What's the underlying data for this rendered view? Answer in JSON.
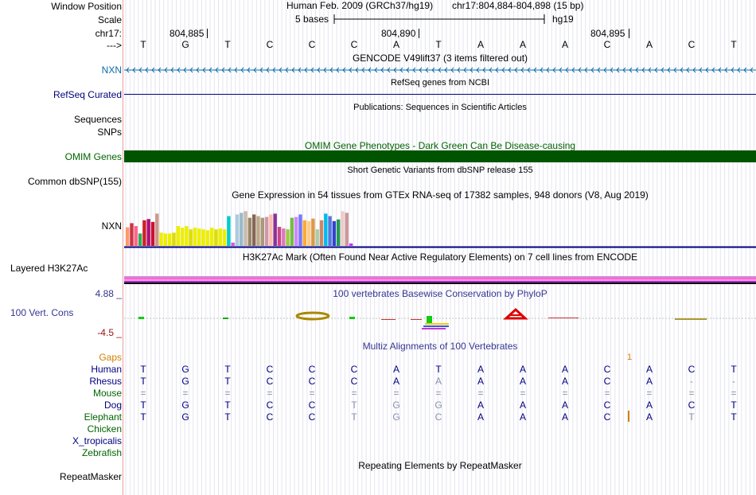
{
  "colors": {
    "navy": "#000080",
    "blue_gene": "#0c6ca8",
    "omim_green": "#005400",
    "gaps_orange": "#d08000",
    "cons_blue": "#353595",
    "h3k27_pink": "#ff66cc",
    "h3k27_purple": "#9933cc"
  },
  "header": {
    "window_position_label": "Window Position",
    "scale_label": "Scale",
    "chrom_label": "chr17:",
    "arrow_label": "--->",
    "assembly_text": "Human Feb. 2009 (GRCh37/hg19)",
    "position_text": "chr17:804,884-804,898 (15 bp)",
    "scale_text": "5 bases",
    "db_text": "hg19",
    "ticks": [
      "804,885",
      "804,890",
      "804,895"
    ]
  },
  "bases": [
    "T",
    "G",
    "T",
    "C",
    "C",
    "C",
    "A",
    "T",
    "A",
    "A",
    "A",
    "C",
    "A",
    "C",
    "T"
  ],
  "tracks": {
    "gencode_title": "GENCODE V49lift37 (3 items filtered out)",
    "nxn_label": "NXN",
    "refseq_title": "RefSeq genes from NCBI",
    "refseq_label": "RefSeq Curated",
    "publications_title": "Publications: Sequences in Scientific Articles",
    "sequences_label": "Sequences",
    "snps_label": "SNPs",
    "omim_title": "OMIM Gene Phenotypes - Dark Green Can Be Disease-causing",
    "omim_label": "OMIM Genes",
    "dbsnp_title": "Short Genetic Variants from dbSNP release 155",
    "dbsnp_label": "Common dbSNP(155)",
    "gtex_title": "Gene Expression in 54 tissues from GTEx RNA-seq of 17382 samples, 948 donors (V8, Aug 2019)",
    "gtex_label": "NXN",
    "h3k27_title": "H3K27Ac Mark (Often Found Near Active Regulatory Elements) on 7 cell lines from ENCODE",
    "h3k27_label": "Layered H3K27Ac",
    "phylop_title": "100 vertebrates Basewise Conservation by PhyloP",
    "phylop_max": "4.88 _",
    "phylop_label": "100 Vert. Cons",
    "phylop_min": "-4.5 _",
    "multiz_title": "Multiz Alignments of 100 Vertebrates",
    "gaps_label": "Gaps",
    "repeat_title": "Repeating Elements by RepeatMasker",
    "repeat_label": "RepeatMasker"
  },
  "gtex_values": [
    0.45,
    0.55,
    0.48,
    0.3,
    0.62,
    0.65,
    0.58,
    0.78,
    0.32,
    0.3,
    0.3,
    0.32,
    0.48,
    0.44,
    0.48,
    0.4,
    0.44,
    0.42,
    0.4,
    0.38,
    0.44,
    0.4,
    0.42,
    0.4,
    0.72,
    0.08,
    0.76,
    0.8,
    0.84,
    0.68,
    0.76,
    0.72,
    0.68,
    0.7,
    0.76,
    0.78,
    0.46,
    0.42,
    0.4,
    0.68,
    0.7,
    0.76,
    0.62,
    0.6,
    0.66,
    0.4,
    0.62,
    0.78,
    0.72,
    0.6,
    0.64,
    0.84,
    0.8,
    0.06
  ],
  "gtex_colors": [
    "#ff9966",
    "#cc3344",
    "#ff6688",
    "#33aa55",
    "#cc2222",
    "#aa1177",
    "#cc1133",
    "#cc9988",
    "#eeee00",
    "#eeee00",
    "#eeee00",
    "#dddd00",
    "#eeee00",
    "#eeee00",
    "#eeee00",
    "#dddd00",
    "#eeee00",
    "#eeee00",
    "#eeee00",
    "#eeee00",
    "#eeee00",
    "#dddd00",
    "#eeee00",
    "#eeee00",
    "#00cccc",
    "#dd55dd",
    "#aaccdd",
    "#99bbcc",
    "#ccbbaa",
    "#998866",
    "#886655",
    "#bbaa88",
    "#aa9977",
    "#cc99aa",
    "#ffbbaa",
    "#883399",
    "#cc4488",
    "#dd77bb",
    "#99cc44",
    "#77bb44",
    "#cc88ff",
    "#7777ff",
    "#ffaa33",
    "#ffcc88",
    "#dd9944",
    "#aaccaa",
    "#cc8866",
    "#00bbee",
    "#5577dd",
    "#3344cc",
    "#229955",
    "#eecccc",
    "#cc9999",
    "#cc33ff"
  ],
  "species": [
    {
      "name": "Human",
      "seq": [
        "T",
        "G",
        "T",
        "C",
        "C",
        "C",
        "A",
        "T",
        "A",
        "A",
        "A",
        "C",
        "A",
        "C",
        "T"
      ]
    },
    {
      "name": "Rhesus",
      "seq": [
        "T",
        "G",
        "T",
        "C",
        "C",
        "C",
        "A",
        "A",
        "A",
        "A",
        "A",
        "C",
        "A",
        "-",
        "-"
      ]
    },
    {
      "name": "Mouse",
      "seq": [
        "=",
        "=",
        "=",
        "=",
        "=",
        "=",
        "=",
        "=",
        "=",
        "=",
        "=",
        "=",
        "=",
        "=",
        "="
      ]
    },
    {
      "name": "Dog",
      "seq": [
        "T",
        "G",
        "T",
        "C",
        "C",
        "T",
        "G",
        "G",
        "A",
        "A",
        "A",
        "C",
        "A",
        "C",
        "T"
      ]
    },
    {
      "name": "Elephant",
      "seq": [
        "T",
        "G",
        "T",
        "C",
        "C",
        "T",
        "G",
        "C",
        "A",
        "A",
        "A",
        "C",
        "A",
        "T",
        "T"
      ]
    },
    {
      "name": "Chicken",
      "seq": []
    },
    {
      "name": "X_tropicalis",
      "seq": []
    },
    {
      "name": "Zebrafish",
      "seq": []
    }
  ]
}
